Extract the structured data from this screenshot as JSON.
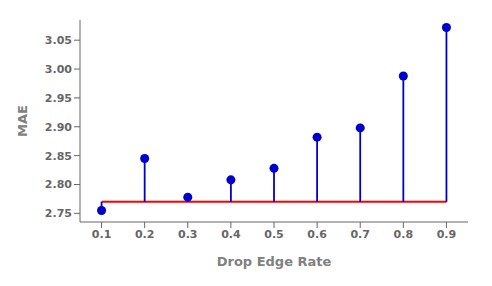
{
  "chart_data": {
    "type": "lollipop",
    "xlabel": "Drop Edge Rate",
    "ylabel": "MAE",
    "x": [
      0.1,
      0.2,
      0.3,
      0.4,
      0.5,
      0.6,
      0.7,
      0.8,
      0.9
    ],
    "values": [
      2.755,
      2.845,
      2.778,
      2.808,
      2.828,
      2.882,
      2.898,
      2.988,
      3.072
    ],
    "color": "#0000CC",
    "baseline": {
      "value": 2.77,
      "x": [
        0.1,
        0.9
      ],
      "color": "#FF0000"
    },
    "xlim": [
      0.05,
      0.95
    ],
    "ylim": [
      2.735,
      3.085
    ],
    "xticks": [
      0.1,
      0.2,
      0.3,
      0.4,
      0.5,
      0.6,
      0.7,
      0.8,
      0.9
    ],
    "yticks": [
      2.75,
      {
        "value": 2.8,
        "label": "2.80"
      },
      2.85,
      {
        "value": 2.9,
        "label": "2.90"
      },
      2.95,
      {
        "value": 3.0,
        "label": "3.00"
      },
      3.05
    ],
    "grid": false
  }
}
